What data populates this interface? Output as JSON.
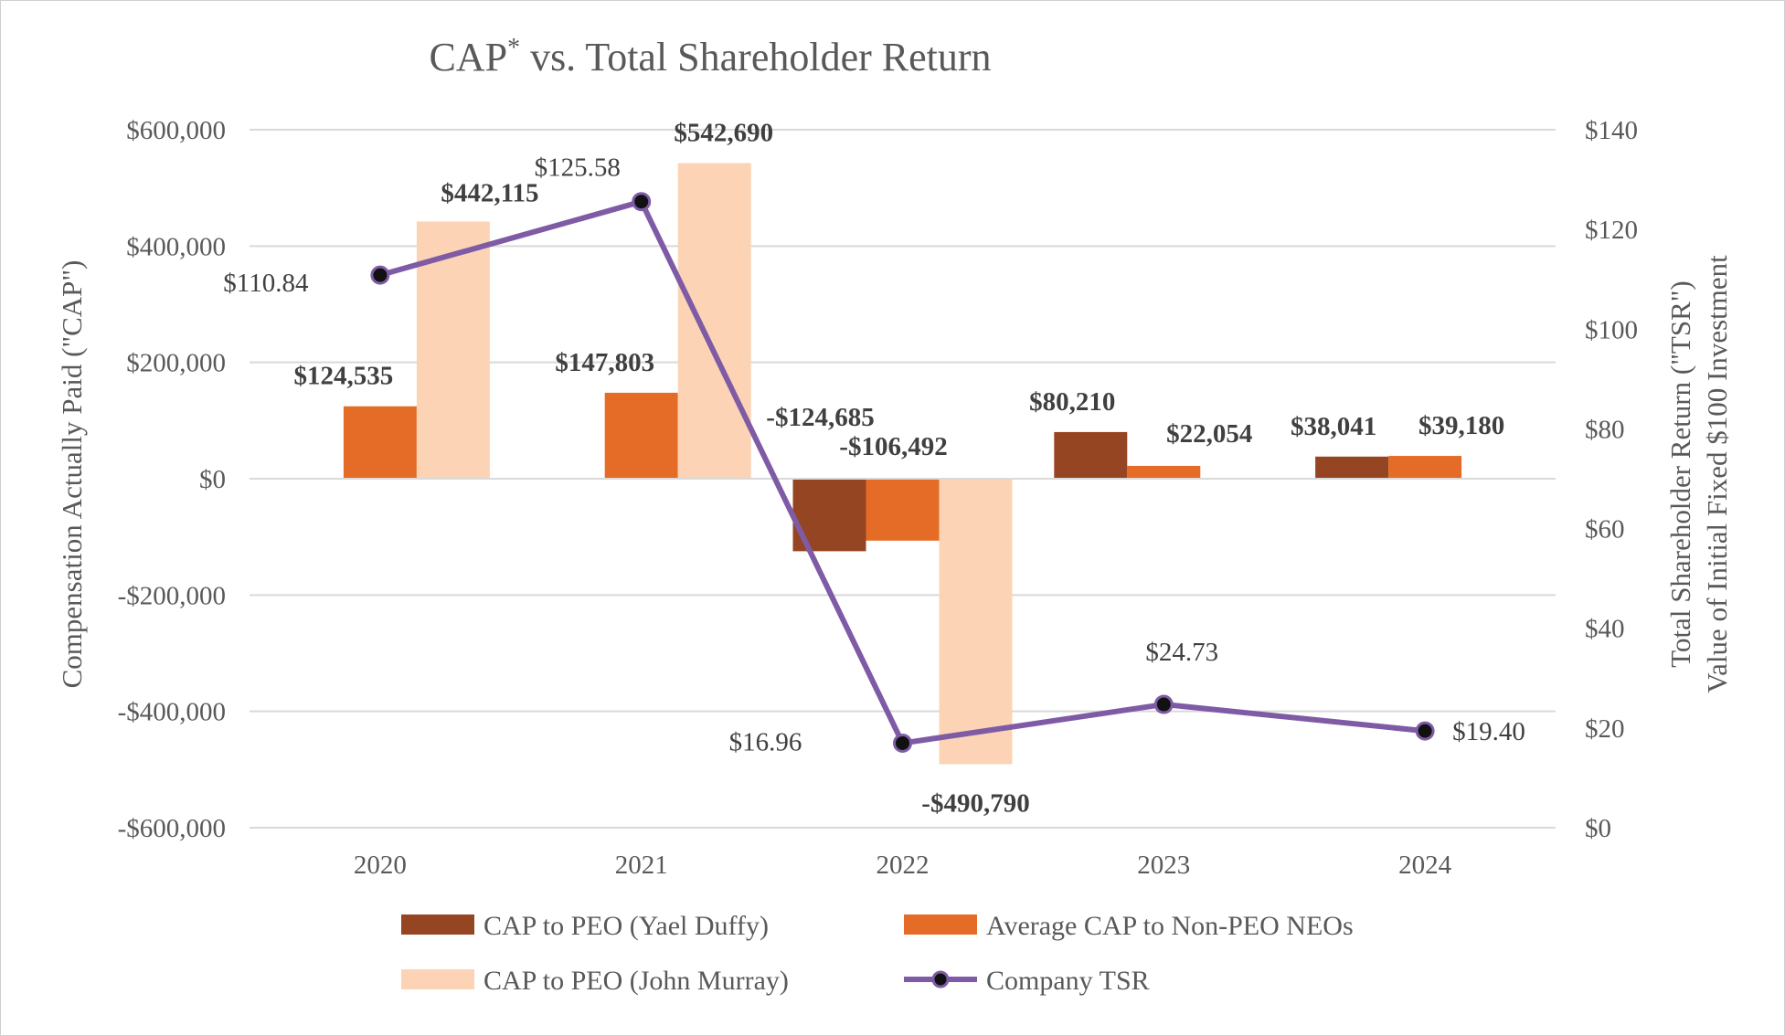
{
  "chart_data": {
    "type": "bar",
    "title": "CAP",
    "title_superscript": "*",
    "title_suffix": " vs. Total Shareholder Return",
    "categories": [
      "2020",
      "2021",
      "2022",
      "2023",
      "2024"
    ],
    "ylabel": "Compensation Actually Paid (\"CAP\")",
    "ylim": [
      -600000,
      600000
    ],
    "y_ticks": [
      {
        "value": 600000,
        "label": "$600,000"
      },
      {
        "value": 400000,
        "label": "$400,000"
      },
      {
        "value": 200000,
        "label": "$200,000"
      },
      {
        "value": 0,
        "label": "$0"
      },
      {
        "value": -200000,
        "label": "-$200,000"
      },
      {
        "value": -400000,
        "label": "-$400,000"
      },
      {
        "value": -600000,
        "label": "-$600,000"
      }
    ],
    "y2label_line1": "Total Shareholder Return (\"TSR\")",
    "y2label_line2": "Value of Initial Fixed $100 Investment",
    "y2lim": [
      0,
      140
    ],
    "y2_ticks": [
      {
        "value": 140,
        "label": "$140"
      },
      {
        "value": 120,
        "label": "$120"
      },
      {
        "value": 100,
        "label": "$100"
      },
      {
        "value": 80,
        "label": "$80"
      },
      {
        "value": 60,
        "label": "$60"
      },
      {
        "value": 40,
        "label": "$40"
      },
      {
        "value": 20,
        "label": "$20"
      },
      {
        "value": 0,
        "label": "$0"
      }
    ],
    "grid": true,
    "legend_position": "bottom",
    "series": [
      {
        "name": "CAP to PEO (Yael Duffy)",
        "type": "bar",
        "color": "#964523",
        "values": [
          null,
          null,
          -124685,
          80210,
          38041
        ],
        "labels": [
          null,
          null,
          "-$124,685",
          "$80,210",
          "$38,041"
        ]
      },
      {
        "name": "Average CAP to Non-PEO NEOs",
        "type": "bar",
        "color": "#E46C26",
        "values": [
          124535,
          147803,
          -106492,
          22054,
          39180
        ],
        "labels": [
          "$124,535",
          "$147,803",
          "-$106,492",
          "$22,054",
          "$39,180"
        ]
      },
      {
        "name": "CAP to PEO (John Murray)",
        "type": "bar",
        "color": "#FCD4B5",
        "values": [
          442115,
          542690,
          -490790,
          null,
          null
        ],
        "labels": [
          "$442,115",
          "$542,690",
          "-$490,790",
          null,
          null
        ]
      },
      {
        "name": "Company TSR",
        "type": "line",
        "axis": "right",
        "color": "#7F5BA6",
        "marker_color": "#111111",
        "values": [
          110.84,
          125.58,
          16.96,
          24.73,
          19.4
        ],
        "labels": [
          "$110.84",
          "$125.58",
          "$16.96",
          "$24.73",
          "$19.40"
        ]
      }
    ]
  }
}
